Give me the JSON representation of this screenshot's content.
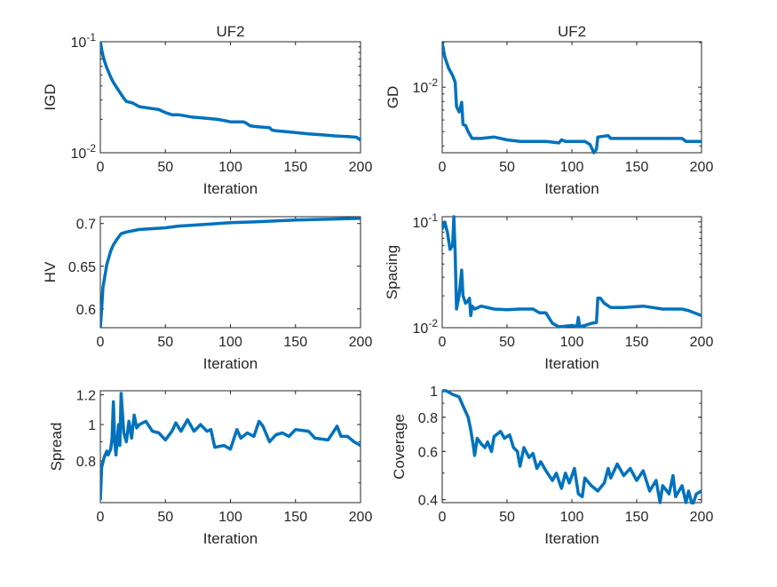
{
  "chart_data": [
    {
      "type": "line",
      "title": "UF2",
      "xlabel": "Iteration",
      "ylabel": "IGD",
      "yscale": "log",
      "xlim": [
        0,
        200
      ],
      "ylim": [
        0.01,
        0.1
      ],
      "xticks": [
        0,
        50,
        100,
        150,
        200
      ],
      "xtick_labels": [
        "0",
        "50",
        "100",
        "150",
        "200"
      ],
      "yticks": [
        0.01,
        0.1
      ],
      "ytick_labels": [
        "10^-2",
        "10^-1"
      ],
      "x": [
        0,
        1,
        2,
        3,
        5,
        8,
        10,
        13,
        15,
        18,
        20,
        25,
        30,
        40,
        45,
        50,
        55,
        60,
        70,
        80,
        90,
        95,
        100,
        110,
        112,
        115,
        120,
        130,
        132,
        135,
        140,
        150,
        160,
        170,
        180,
        190,
        197,
        200
      ],
      "y": [
        0.1,
        0.085,
        0.075,
        0.068,
        0.058,
        0.048,
        0.043,
        0.038,
        0.035,
        0.031,
        0.029,
        0.028,
        0.026,
        0.025,
        0.0245,
        0.023,
        0.022,
        0.022,
        0.021,
        0.0205,
        0.02,
        0.0195,
        0.019,
        0.019,
        0.0185,
        0.0175,
        0.0172,
        0.0168,
        0.016,
        0.0158,
        0.0156,
        0.0152,
        0.0148,
        0.0145,
        0.0142,
        0.014,
        0.0138,
        0.013
      ]
    },
    {
      "type": "line",
      "title": "UF2",
      "xlabel": "Iteration",
      "ylabel": "GD",
      "yscale": "log",
      "xlim": [
        0,
        200
      ],
      "ylim": [
        0.0036,
        0.0203
      ],
      "xticks": [
        0,
        50,
        100,
        150,
        200
      ],
      "xtick_labels": [
        "0",
        "50",
        "100",
        "150",
        "200"
      ],
      "yticks": [
        0.01
      ],
      "ytick_labels": [
        "10^-2"
      ],
      "x": [
        0,
        2,
        5,
        8,
        10,
        11,
        13,
        14,
        15,
        16,
        18,
        20,
        23,
        25,
        30,
        40,
        50,
        60,
        70,
        80,
        90,
        92,
        95,
        100,
        110,
        114,
        117,
        119,
        120,
        128,
        130,
        150,
        185,
        188,
        200
      ],
      "y": [
        0.02,
        0.016,
        0.0134,
        0.012,
        0.0108,
        0.0074,
        0.0068,
        0.0072,
        0.0079,
        0.0056,
        0.0055,
        0.005,
        0.0045,
        0.0045,
        0.0045,
        0.0046,
        0.0044,
        0.0043,
        0.0043,
        0.0043,
        0.0042,
        0.0044,
        0.0043,
        0.0043,
        0.0043,
        0.0041,
        0.0036,
        0.0038,
        0.0046,
        0.0047,
        0.0045,
        0.0045,
        0.0045,
        0.0043,
        0.0043
      ]
    },
    {
      "type": "line",
      "title": "",
      "xlabel": "Iteration",
      "ylabel": "HV",
      "yscale": "linear",
      "xlim": [
        0,
        200
      ],
      "ylim": [
        0.578,
        0.708
      ],
      "xticks": [
        0,
        50,
        100,
        150,
        200
      ],
      "xtick_labels": [
        "0",
        "50",
        "100",
        "150",
        "200"
      ],
      "yticks": [
        0.6,
        0.65,
        0.7
      ],
      "ytick_labels": [
        "0.6",
        "0.65",
        "0.7"
      ],
      "x": [
        0,
        1,
        2,
        5,
        8,
        10,
        13,
        16,
        20,
        30,
        40,
        50,
        60,
        80,
        100,
        120,
        150,
        200
      ],
      "y": [
        0.578,
        0.6,
        0.625,
        0.652,
        0.668,
        0.675,
        0.682,
        0.688,
        0.69,
        0.693,
        0.694,
        0.695,
        0.697,
        0.699,
        0.701,
        0.702,
        0.704,
        0.706
      ]
    },
    {
      "type": "line",
      "title": "",
      "xlabel": "Iteration",
      "ylabel": "Spacing",
      "yscale": "log",
      "xlim": [
        0,
        200
      ],
      "ylim": [
        0.01,
        0.112
      ],
      "xticks": [
        0,
        50,
        100,
        150,
        200
      ],
      "xtick_labels": [
        "0",
        "50",
        "100",
        "150",
        "200"
      ],
      "yticks": [
        0.01,
        0.1
      ],
      "ytick_labels": [
        "10^-2",
        "10^-1"
      ],
      "x": [
        0,
        2,
        4,
        6,
        8,
        9,
        10,
        11,
        13,
        15,
        16,
        18,
        20,
        21,
        22,
        23,
        25,
        30,
        40,
        50,
        60,
        70,
        75,
        80,
        85,
        90,
        100,
        104,
        105,
        106,
        110,
        115,
        119,
        120,
        122,
        125,
        130,
        140,
        155,
        170,
        185,
        190,
        200
      ],
      "y": [
        0.085,
        0.1,
        0.08,
        0.055,
        0.06,
        0.112,
        0.05,
        0.015,
        0.02,
        0.035,
        0.02,
        0.017,
        0.018,
        0.019,
        0.013,
        0.016,
        0.015,
        0.016,
        0.015,
        0.0148,
        0.015,
        0.015,
        0.0138,
        0.0138,
        0.011,
        0.0102,
        0.0105,
        0.0103,
        0.0125,
        0.0102,
        0.0105,
        0.011,
        0.0112,
        0.019,
        0.019,
        0.017,
        0.0155,
        0.0155,
        0.016,
        0.015,
        0.015,
        0.0145,
        0.013
      ]
    },
    {
      "type": "line",
      "title": "",
      "xlabel": "Iteration",
      "ylabel": "Spread",
      "yscale": "log",
      "xlim": [
        0,
        200
      ],
      "ylim": [
        0.62,
        1.23
      ],
      "xticks": [
        0,
        50,
        100,
        150,
        200
      ],
      "xtick_labels": [
        "0",
        "50",
        "100",
        "150",
        "200"
      ],
      "yticks": [
        0.8,
        1,
        1.2
      ],
      "ytick_labels": [
        "0.8",
        "1",
        "1.2"
      ],
      "x": [
        0,
        1,
        3,
        5,
        6,
        8,
        9,
        10,
        11,
        12,
        14,
        15,
        16,
        18,
        20,
        22,
        24,
        26,
        28,
        30,
        35,
        40,
        45,
        50,
        55,
        58,
        62,
        67,
        72,
        77,
        82,
        85,
        88,
        95,
        100,
        105,
        108,
        113,
        118,
        122,
        125,
        130,
        135,
        140,
        145,
        150,
        160,
        165,
        175,
        182,
        185,
        190,
        195,
        200
      ],
      "y": [
        0.63,
        0.77,
        0.82,
        0.85,
        0.83,
        0.86,
        0.92,
        1.15,
        0.9,
        0.83,
        1.0,
        0.88,
        1.21,
        0.95,
        0.9,
        1.02,
        0.92,
        1.06,
        0.98,
        1.0,
        1.02,
        0.96,
        0.95,
        0.91,
        0.96,
        1.01,
        0.96,
        1.03,
        0.96,
        1.0,
        0.96,
        0.97,
        0.87,
        0.88,
        0.86,
        0.97,
        0.92,
        0.95,
        0.93,
        1.02,
        0.99,
        0.9,
        0.94,
        0.95,
        0.93,
        0.97,
        0.96,
        0.92,
        0.91,
        0.99,
        0.93,
        0.93,
        0.9,
        0.88
      ]
    },
    {
      "type": "line",
      "title": "",
      "xlabel": "Iteration",
      "ylabel": "Coverage",
      "yscale": "log",
      "xlim": [
        0,
        200
      ],
      "ylim": [
        0.39,
        1.0
      ],
      "xticks": [
        0,
        50,
        100,
        150,
        200
      ],
      "xtick_labels": [
        "0",
        "50",
        "100",
        "150",
        "200"
      ],
      "yticks": [
        0.4,
        0.6,
        0.8,
        1
      ],
      "ytick_labels": [
        "0.4",
        "0.6",
        "0.8",
        "1"
      ],
      "x": [
        0,
        3,
        8,
        13,
        17,
        20,
        22,
        24,
        25,
        27,
        30,
        33,
        35,
        38,
        40,
        45,
        48,
        52,
        55,
        58,
        60,
        63,
        67,
        70,
        73,
        76,
        80,
        85,
        88,
        92,
        95,
        98,
        102,
        105,
        108,
        110,
        115,
        120,
        125,
        128,
        130,
        135,
        140,
        145,
        150,
        155,
        160,
        165,
        168,
        170,
        175,
        178,
        180,
        185,
        188,
        190,
        193,
        196,
        200
      ],
      "y": [
        1.0,
        1.0,
        0.97,
        0.95,
        0.86,
        0.8,
        0.72,
        0.63,
        0.58,
        0.67,
        0.64,
        0.62,
        0.65,
        0.6,
        0.68,
        0.71,
        0.67,
        0.69,
        0.62,
        0.6,
        0.53,
        0.62,
        0.57,
        0.59,
        0.52,
        0.55,
        0.51,
        0.47,
        0.5,
        0.44,
        0.5,
        0.46,
        0.52,
        0.42,
        0.41,
        0.48,
        0.45,
        0.43,
        0.46,
        0.52,
        0.48,
        0.54,
        0.49,
        0.52,
        0.47,
        0.51,
        0.43,
        0.47,
        0.39,
        0.45,
        0.42,
        0.49,
        0.41,
        0.45,
        0.39,
        0.43,
        0.38,
        0.42,
        0.43
      ]
    }
  ],
  "colors": {
    "line": "#0072BD",
    "axis": "#262626"
  }
}
